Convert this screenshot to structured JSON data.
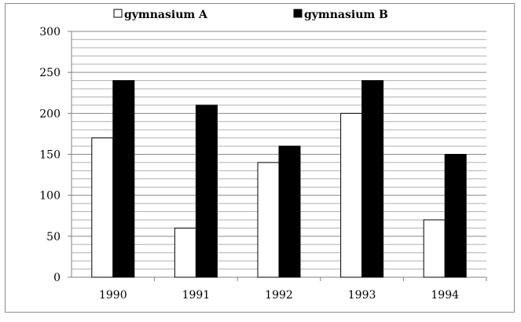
{
  "chart_data": {
    "type": "bar",
    "title": "",
    "xlabel": "",
    "ylabel": "",
    "categories": [
      "1990",
      "1991",
      "1992",
      "1993",
      "1994"
    ],
    "series": [
      {
        "name": "gymnasium A",
        "color": "#ffffff",
        "values": [
          170,
          60,
          140,
          200,
          70
        ]
      },
      {
        "name": "gymnasium B",
        "color": "#000000",
        "values": [
          240,
          210,
          160,
          240,
          150
        ]
      }
    ],
    "ylim": [
      0,
      300
    ],
    "yticks": [
      0,
      50,
      100,
      150,
      200,
      250,
      300
    ],
    "grid": true,
    "legend_position": "top"
  }
}
